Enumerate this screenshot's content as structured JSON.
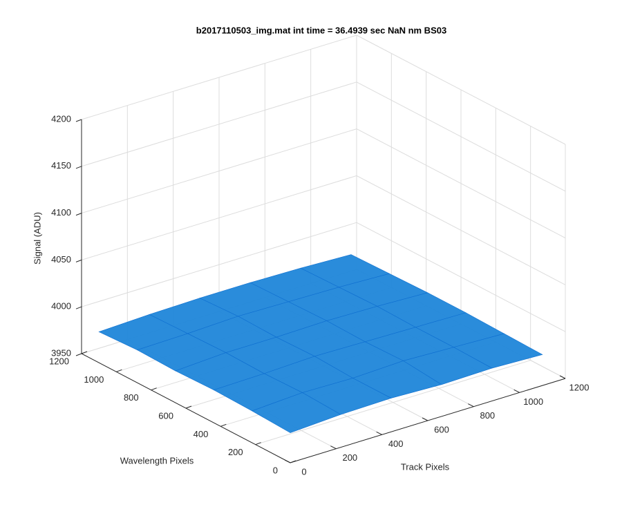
{
  "chart_data": {
    "type": "surface3d",
    "title": "b2017110503_img.mat int time = 36.4939 sec  NaN nm BS03",
    "xlabel": "Track Pixels",
    "ylabel": "Wavelength Pixels",
    "zlabel": "Signal (ADU)",
    "x": [
      0,
      220,
      440,
      660,
      880,
      1100
    ],
    "y": [
      0,
      220,
      440,
      660,
      880,
      1100
    ],
    "z": [
      [
        3982,
        3985,
        3986,
        3984,
        3985,
        3983
      ],
      [
        3984,
        3987,
        3986,
        3988,
        3986,
        3984
      ],
      [
        3985,
        3986,
        3988,
        3987,
        3986,
        3985
      ],
      [
        3984,
        3987,
        3987,
        3988,
        3987,
        3985
      ],
      [
        3985,
        3986,
        3988,
        3987,
        3986,
        3984
      ],
      [
        3983,
        3985,
        3986,
        3986,
        3985,
        3983
      ]
    ],
    "color": "#1f86d9",
    "xlim": [
      0,
      1200
    ],
    "ylim": [
      0,
      1200
    ],
    "zlim": [
      3950,
      4200
    ],
    "xticks": [
      0,
      200,
      400,
      600,
      800,
      1000,
      1200
    ],
    "yticks": [
      0,
      200,
      400,
      600,
      800,
      1000,
      1200
    ],
    "zticks": [
      3950,
      4000,
      4050,
      4100,
      4150,
      4200
    ],
    "grid": true
  }
}
